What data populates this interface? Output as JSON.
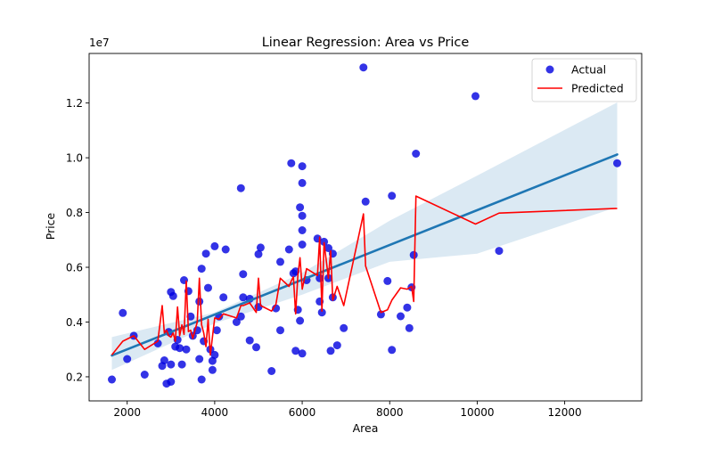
{
  "chart_data": {
    "type": "scatter",
    "title": "Linear Regression: Area vs Price",
    "xlabel": "Area",
    "ylabel": "Price",
    "y_offset_label": "1e7",
    "xlim": [
      1130,
      13760
    ],
    "ylim": [
      1120000,
      13810000
    ],
    "x_ticks": [
      2000,
      4000,
      6000,
      8000,
      10000,
      12000
    ],
    "x_tick_labels": [
      "2000",
      "4000",
      "6000",
      "8000",
      "10000",
      "12000"
    ],
    "y_ticks": [
      2000000,
      4000000,
      6000000,
      8000000,
      10000000,
      12000000
    ],
    "y_tick_labels": [
      "0.2",
      "0.4",
      "0.6",
      "0.8",
      "1.0",
      "1.2"
    ],
    "grid": false,
    "legend_position": "top-right",
    "colors": {
      "actual": "#0000e0",
      "predicted": "#ff0000",
      "regression": "#1f77b4",
      "confidence_band": "#1f77b4"
    },
    "legend": [
      {
        "label": "Actual",
        "kind": "marker"
      },
      {
        "label": "Predicted",
        "kind": "line"
      }
    ],
    "regression_line": {
      "x": [
        1650,
        13200
      ],
      "y": [
        2780000,
        10120000
      ]
    },
    "confidence_band": {
      "x": [
        1650,
        4000,
        6000,
        8000,
        10000,
        13200
      ],
      "upper": [
        3450000,
        4350000,
        5800000,
        7700000,
        9350000,
        12020000
      ],
      "lower": [
        2250000,
        3950000,
        5000000,
        6200000,
        6500000,
        8200000
      ]
    },
    "series": [
      {
        "name": "Actual",
        "x": [
          1650,
          1900,
          2000,
          2150,
          2400,
          2700,
          2800,
          2850,
          2900,
          2950,
          3000,
          3000,
          3000,
          3050,
          3100,
          3150,
          3200,
          3250,
          3300,
          3350,
          3400,
          3450,
          3500,
          3600,
          3650,
          3650,
          3700,
          3700,
          3750,
          3800,
          3850,
          3900,
          3950,
          3950,
          4000,
          4000,
          4050,
          4100,
          4200,
          4250,
          4500,
          4600,
          4600,
          4650,
          4650,
          4800,
          4800,
          4950,
          5000,
          5000,
          5050,
          5300,
          5400,
          5500,
          5500,
          5700,
          5750,
          5800,
          5850,
          5850,
          5900,
          5950,
          5950,
          6000,
          6000,
          6000,
          6000,
          6000,
          6000,
          6100,
          6350,
          6400,
          6400,
          6450,
          6500,
          6600,
          6600,
          6650,
          6700,
          6700,
          6800,
          6950,
          7400,
          7450,
          7800,
          7950,
          8050,
          8050,
          8250,
          8400,
          8450,
          8500,
          8550,
          8600,
          9960,
          10500,
          13200
        ],
        "y": [
          1900000,
          4330000,
          2650000,
          3500000,
          2080000,
          3220000,
          2400000,
          2600000,
          1750000,
          3640000,
          5100000,
          1820000,
          2450000,
          4950000,
          3100000,
          3350000,
          3050000,
          2450000,
          5530000,
          3000000,
          5130000,
          4200000,
          3500000,
          3700000,
          2650000,
          4750000,
          1900000,
          5950000,
          3300000,
          6500000,
          5250000,
          3000000,
          2580000,
          2250000,
          6770000,
          2800000,
          3700000,
          4200000,
          4900000,
          6650000,
          4000000,
          8890000,
          4200000,
          4900000,
          5750000,
          4850000,
          3330000,
          3080000,
          6480000,
          4550000,
          6720000,
          2210000,
          4500000,
          3700000,
          6200000,
          6650000,
          9800000,
          5780000,
          2950000,
          5850000,
          4450000,
          4050000,
          8190000,
          9690000,
          9080000,
          7880000,
          7350000,
          6830000,
          2850000,
          5530000,
          7050000,
          5600000,
          4750000,
          4350000,
          6930000,
          6700000,
          5600000,
          2950000,
          6500000,
          4900000,
          3150000,
          3780000,
          13300000,
          8400000,
          4280000,
          5500000,
          2980000,
          8610000,
          4210000,
          4530000,
          3780000,
          5270000,
          6450000,
          10150000,
          12250000,
          6600000,
          9800000
        ]
      },
      {
        "name": "Predicted",
        "x": [
          1650,
          1900,
          2150,
          2400,
          2700,
          2800,
          2850,
          2900,
          2950,
          3000,
          3050,
          3100,
          3150,
          3200,
          3250,
          3300,
          3350,
          3400,
          3450,
          3500,
          3600,
          3650,
          3700,
          3750,
          3800,
          3850,
          3900,
          4000,
          4100,
          4200,
          4500,
          4600,
          4650,
          4800,
          4950,
          5000,
          5050,
          5300,
          5400,
          5500,
          5700,
          5750,
          5800,
          5850,
          5900,
          5950,
          6000,
          6100,
          6350,
          6400,
          6450,
          6500,
          6600,
          6650,
          6700,
          6800,
          6950,
          7400,
          7450,
          7800,
          7950,
          8050,
          8250,
          8400,
          8500,
          8550,
          8600,
          9960,
          10500,
          13200
        ],
        "y": [
          2800000,
          3300000,
          3500000,
          3000000,
          3300000,
          4600000,
          3600000,
          3700000,
          3500000,
          3450000,
          3600000,
          3300000,
          4550000,
          3500000,
          3900000,
          3550000,
          5500000,
          3650000,
          3700000,
          3400000,
          4000000,
          5600000,
          3900000,
          3600000,
          3100000,
          4100000,
          2800000,
          4150000,
          4100000,
          4300000,
          4150000,
          4600000,
          4600000,
          4700000,
          4350000,
          5600000,
          4600000,
          4400000,
          4650000,
          5600000,
          5300000,
          5500000,
          5650000,
          4300000,
          5700000,
          6350000,
          5200000,
          5950000,
          5700000,
          7100000,
          4400000,
          6900000,
          5600000,
          6600000,
          4800000,
          5300000,
          4600000,
          7950000,
          6050000,
          4350000,
          4450000,
          4800000,
          5250000,
          5200000,
          5300000,
          4750000,
          8600000,
          7580000,
          7980000,
          8150000
        ]
      }
    ]
  }
}
